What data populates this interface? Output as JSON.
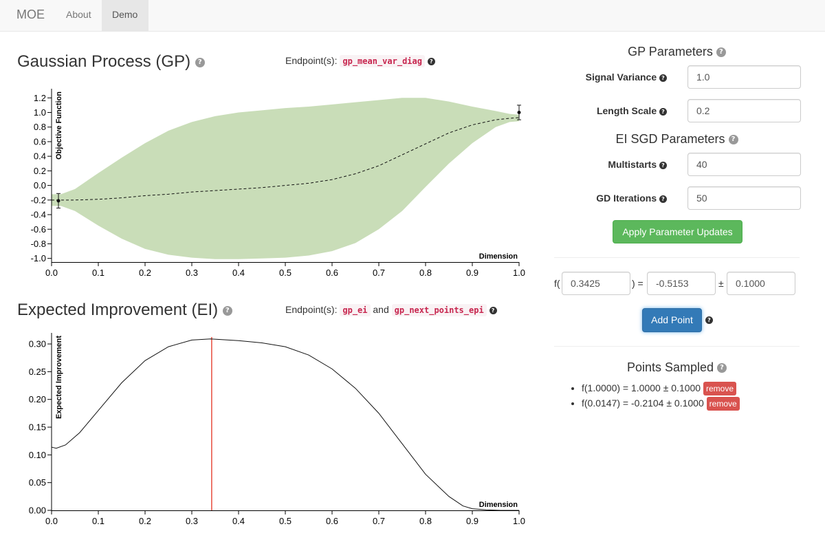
{
  "nav": {
    "brand": "MOE",
    "items": [
      {
        "label": "About"
      },
      {
        "label": "Demo",
        "active": true
      }
    ]
  },
  "gp_section": {
    "title": "Gaussian Process (GP)",
    "endpoints_label": "Endpoint(s):",
    "endpoints": [
      "gp_mean_var_diag"
    ]
  },
  "ei_section": {
    "title": "Expected Improvement (EI)",
    "endpoints_label": "Endpoint(s):",
    "endpoints": [
      "gp_ei",
      "gp_next_points_epi"
    ],
    "joiner": "and"
  },
  "gp_params": {
    "heading": "GP Parameters",
    "signal_variance": {
      "label": "Signal Variance",
      "value": "1.0"
    },
    "length_scale": {
      "label": "Length Scale",
      "value": "0.2"
    }
  },
  "ei_sgd_params": {
    "heading": "EI SGD Parameters",
    "multistarts": {
      "label": "Multistarts",
      "value": "40"
    },
    "gd_iterations": {
      "label": "GD Iterations",
      "value": "50"
    },
    "apply_label": "Apply Parameter Updates"
  },
  "point_form": {
    "f_open": "f(",
    "x": "0.3425",
    "eq": ") =",
    "y": "-0.5153",
    "pm": "±",
    "noise": "0.1000",
    "add_label": "Add Point"
  },
  "points_sampled": {
    "heading": "Points Sampled",
    "remove_label": "remove",
    "items": [
      {
        "text": "f(1.0000) = 1.0000 ± 0.1000"
      },
      {
        "text": "f(0.0147) = -0.2104 ± 0.1000"
      }
    ]
  },
  "colors": {
    "band": "#c9ddb8",
    "ei_line": "#e74c3c",
    "success": "#5cb85c",
    "primary": "#337ab7",
    "danger": "#d9534f"
  },
  "chart_data": [
    {
      "type": "area",
      "xlabel": "Dimension",
      "ylabel": "Objective Function",
      "xlim": [
        0,
        1
      ],
      "ylim": [
        -1.05,
        1.25
      ],
      "xticks": [
        "0.0",
        "0.1",
        "0.2",
        "0.3",
        "0.4",
        "0.5",
        "0.6",
        "0.7",
        "0.8",
        "0.9",
        "1.0"
      ],
      "yticks": [
        "-1.0",
        "-0.8",
        "-0.6",
        "-0.4",
        "-0.2",
        "0.0",
        "0.2",
        "0.4",
        "0.6",
        "0.8",
        "1.0",
        "1.2"
      ],
      "x": [
        0,
        0.02,
        0.05,
        0.1,
        0.15,
        0.2,
        0.25,
        0.3,
        0.35,
        0.4,
        0.45,
        0.5,
        0.55,
        0.6,
        0.65,
        0.7,
        0.75,
        0.8,
        0.85,
        0.9,
        0.95,
        0.98,
        1.0
      ],
      "mean": [
        -0.2,
        -0.2,
        -0.2,
        -0.19,
        -0.17,
        -0.14,
        -0.12,
        -0.09,
        -0.07,
        -0.05,
        -0.03,
        0.0,
        0.03,
        0.08,
        0.16,
        0.27,
        0.42,
        0.57,
        0.72,
        0.83,
        0.9,
        0.92,
        0.93
      ],
      "upper": [
        -0.12,
        -0.12,
        -0.05,
        0.17,
        0.38,
        0.58,
        0.75,
        0.87,
        0.95,
        1.0,
        1.03,
        1.06,
        1.08,
        1.11,
        1.14,
        1.17,
        1.2,
        1.2,
        1.15,
        1.08,
        1.02,
        0.98,
        0.97
      ],
      "lower": [
        -0.28,
        -0.28,
        -0.35,
        -0.55,
        -0.73,
        -0.87,
        -0.95,
        -0.99,
        -1.01,
        -1.01,
        -1.0,
        -0.99,
        -0.96,
        -0.9,
        -0.79,
        -0.6,
        -0.35,
        -0.02,
        0.3,
        0.58,
        0.8,
        0.87,
        0.88
      ],
      "points": [
        {
          "x": 0.0147,
          "y": -0.2104,
          "err": 0.1
        },
        {
          "x": 1.0,
          "y": 1.0,
          "err": 0.1
        }
      ]
    },
    {
      "type": "line",
      "xlabel": "Dimension",
      "ylabel": "Expected Improvement",
      "xlim": [
        0,
        1
      ],
      "ylim": [
        0,
        0.31
      ],
      "xticks": [
        "0.0",
        "0.1",
        "0.2",
        "0.3",
        "0.4",
        "0.5",
        "0.6",
        "0.7",
        "0.8",
        "0.9",
        "1.0"
      ],
      "yticks": [
        "0.00",
        "0.05",
        "0.10",
        "0.15",
        "0.20",
        "0.25",
        "0.30"
      ],
      "x": [
        0,
        0.01,
        0.03,
        0.06,
        0.1,
        0.15,
        0.2,
        0.25,
        0.3,
        0.34,
        0.4,
        0.45,
        0.5,
        0.55,
        0.6,
        0.65,
        0.7,
        0.75,
        0.8,
        0.85,
        0.88,
        0.9,
        0.93,
        0.96,
        1.0
      ],
      "y": [
        0.114,
        0.112,
        0.118,
        0.14,
        0.18,
        0.23,
        0.27,
        0.295,
        0.307,
        0.309,
        0.306,
        0.302,
        0.295,
        0.28,
        0.255,
        0.22,
        0.175,
        0.12,
        0.065,
        0.025,
        0.008,
        0.003,
        0.001,
        0.0,
        0.0
      ],
      "marker_x": 0.3425
    }
  ]
}
